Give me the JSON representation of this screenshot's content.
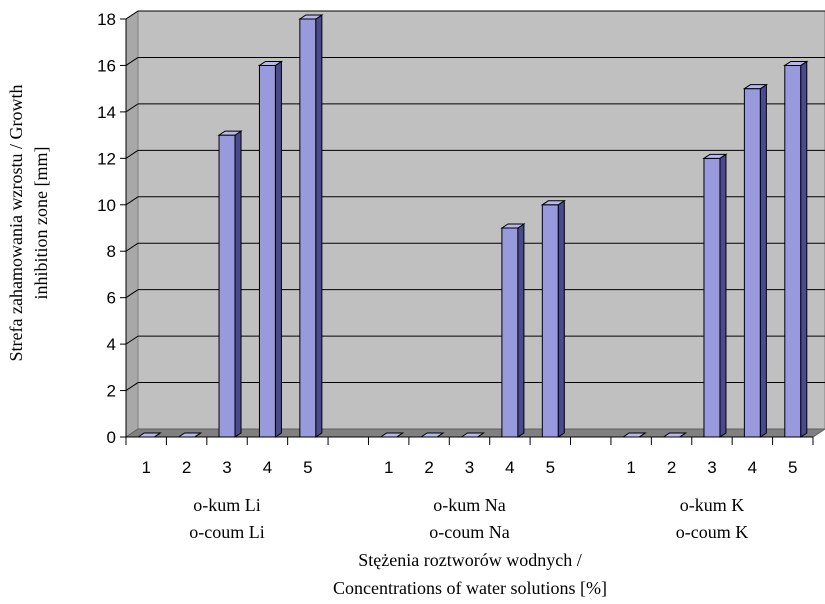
{
  "chart_data": {
    "type": "bar",
    "title": "",
    "ylabel_lines": [
      "Strefa zahamowania wzrostu / Growth",
      "inhibition zone [mm]"
    ],
    "xlabel_lines": [
      "Stężenia roztworów wodnych /",
      "Concentrations of water solutions [%]"
    ],
    "ylim": [
      0,
      18
    ],
    "yticks": [
      0,
      2,
      4,
      6,
      8,
      10,
      12,
      14,
      16,
      18
    ],
    "grid": true,
    "legend": "none",
    "groups": [
      {
        "label_lines": [
          "o-kum Li",
          "o-coum Li"
        ],
        "categories": [
          "1",
          "2",
          "3",
          "4",
          "5"
        ],
        "values": [
          0,
          0,
          13,
          16,
          18
        ]
      },
      {
        "label_lines": [
          "o-kum Na",
          "o-coum Na"
        ],
        "categories": [
          "1",
          "2",
          "3",
          "4",
          "5"
        ],
        "values": [
          0,
          0,
          0,
          9,
          10
        ]
      },
      {
        "label_lines": [
          "o-kum K",
          "o-coum K"
        ],
        "categories": [
          "1",
          "2",
          "3",
          "4",
          "5"
        ],
        "values": [
          0,
          0,
          12,
          15,
          16
        ]
      }
    ],
    "colors": {
      "bar_front": "#9999dd",
      "bar_side": "#4a4a8e",
      "bar_top": "#b8b8ee",
      "plot_wall": "#c0c0c0",
      "floor": "#808080",
      "grid": "#000000"
    }
  }
}
